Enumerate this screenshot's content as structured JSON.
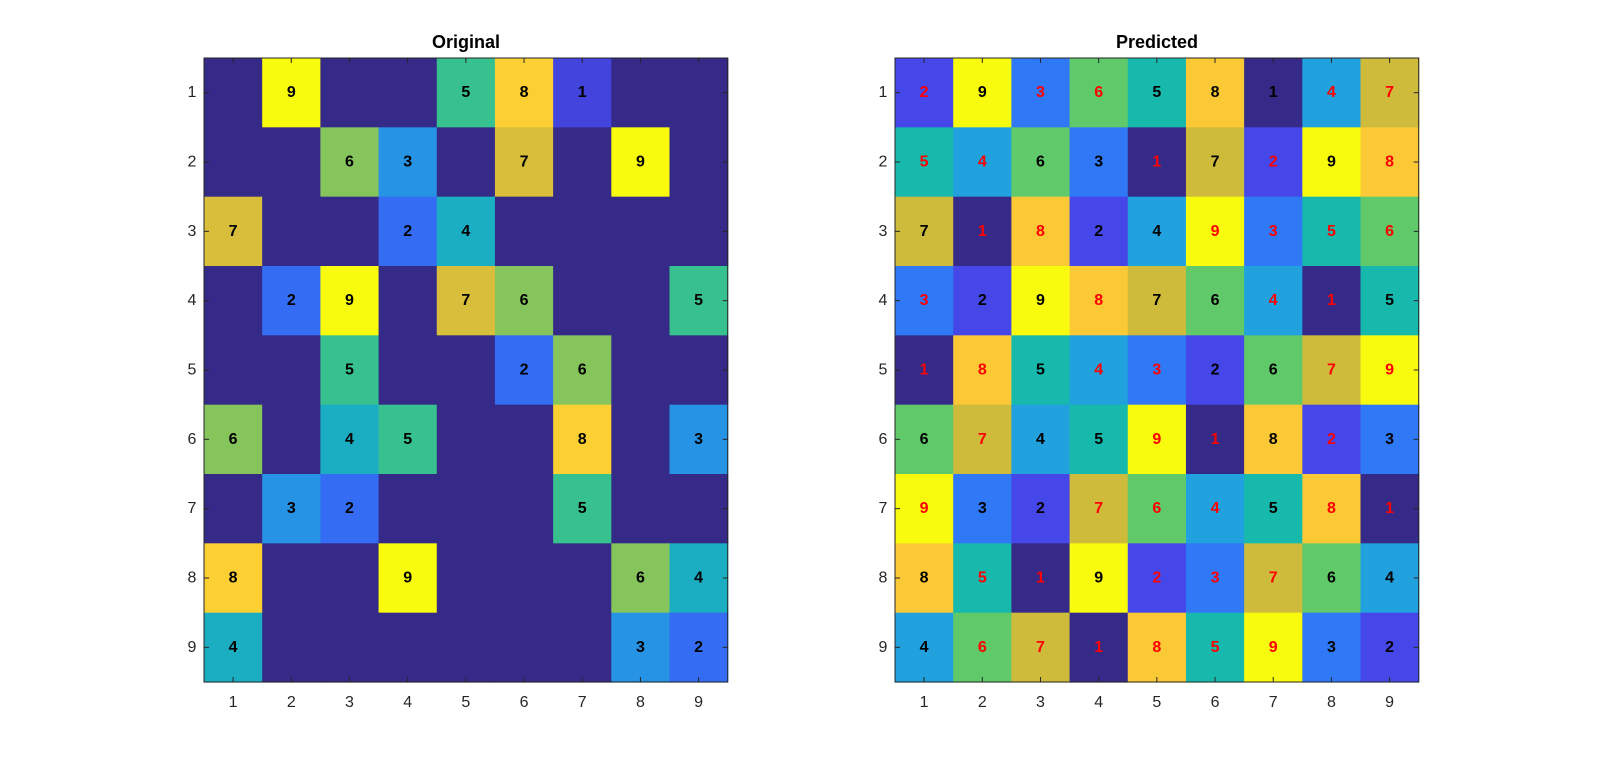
{
  "figure": {
    "background": "#ffffff",
    "colormap": "parula"
  },
  "chart_data": [
    {
      "type": "heatmap",
      "title": "Original",
      "x_categories": [
        "1",
        "2",
        "3",
        "4",
        "5",
        "6",
        "7",
        "8",
        "9"
      ],
      "y_categories": [
        "1",
        "2",
        "3",
        "4",
        "5",
        "6",
        "7",
        "8",
        "9"
      ],
      "value_range": [
        0,
        9
      ],
      "empty_value": 0,
      "values": [
        [
          0,
          9,
          0,
          0,
          5,
          8,
          1,
          0,
          0
        ],
        [
          0,
          0,
          6,
          3,
          0,
          7,
          0,
          9,
          0
        ],
        [
          7,
          0,
          0,
          2,
          4,
          0,
          0,
          0,
          0
        ],
        [
          0,
          2,
          9,
          0,
          7,
          6,
          0,
          0,
          5
        ],
        [
          0,
          0,
          5,
          0,
          0,
          2,
          6,
          0,
          0
        ],
        [
          6,
          0,
          4,
          5,
          0,
          0,
          8,
          0,
          3
        ],
        [
          0,
          3,
          2,
          0,
          0,
          0,
          5,
          0,
          0
        ],
        [
          8,
          0,
          0,
          9,
          0,
          0,
          0,
          6,
          4
        ],
        [
          4,
          0,
          0,
          0,
          0,
          0,
          0,
          3,
          2
        ]
      ],
      "label_colors": {
        "given": "#000000"
      }
    },
    {
      "type": "heatmap",
      "title": "Predicted",
      "x_categories": [
        "1",
        "2",
        "3",
        "4",
        "5",
        "6",
        "7",
        "8",
        "9"
      ],
      "y_categories": [
        "1",
        "2",
        "3",
        "4",
        "5",
        "6",
        "7",
        "8",
        "9"
      ],
      "value_range": [
        1,
        9
      ],
      "values": [
        [
          2,
          9,
          3,
          6,
          5,
          8,
          1,
          4,
          7
        ],
        [
          5,
          4,
          6,
          3,
          1,
          7,
          2,
          9,
          8
        ],
        [
          7,
          1,
          8,
          2,
          4,
          9,
          3,
          5,
          6
        ],
        [
          3,
          2,
          9,
          8,
          7,
          6,
          4,
          1,
          5
        ],
        [
          1,
          8,
          5,
          4,
          3,
          2,
          6,
          7,
          9
        ],
        [
          6,
          7,
          4,
          5,
          9,
          1,
          8,
          2,
          3
        ],
        [
          9,
          3,
          2,
          7,
          6,
          4,
          5,
          8,
          1
        ],
        [
          8,
          5,
          1,
          9,
          2,
          3,
          7,
          6,
          4
        ],
        [
          4,
          6,
          7,
          1,
          8,
          5,
          9,
          3,
          2
        ]
      ],
      "label_colors": {
        "given": "#000000",
        "predicted": "#ff0000"
      }
    }
  ]
}
